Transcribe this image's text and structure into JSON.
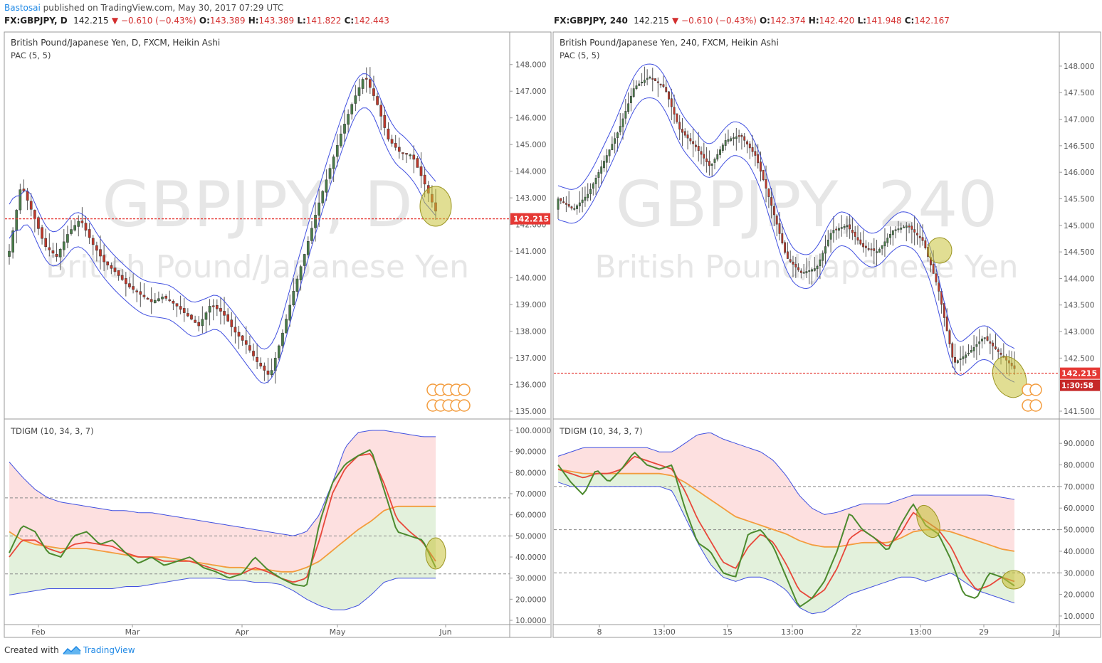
{
  "header": {
    "author": "Bastosai",
    "published": " published on TradingView.com, May 30, 2017 07:29 UTC"
  },
  "panels": [
    {
      "quote": {
        "symbol": "FX:GBPJPY, D",
        "last": "142.215",
        "change": "▼ −0.610 (−0.43%)",
        "o": "143.389",
        "h": "143.389",
        "l": "141.822",
        "c": "142.443"
      },
      "title": "British Pound/Japanese Yen, D, FXCM, Heikin Ashi",
      "indicator": "PAC (5, 5)",
      "watermark_symbol": "GBPJPY, D",
      "watermark_name": "British Pound/Japanese Yen",
      "price_label": "142.215",
      "osc_title": "TDIGM (10, 34, 3, 7)",
      "x_ticks": [
        "Feb",
        "Mar",
        "Apr",
        "May",
        "Jun"
      ]
    },
    {
      "quote": {
        "symbol": "FX:GBPJPY, 240",
        "last": "142.215",
        "change": "▼ −0.610 (−0.43%)",
        "o": "142.374",
        "h": "142.420",
        "l": "141.948",
        "c": "142.167"
      },
      "title": "British Pound/Japanese Yen, 240, FXCM, Heikin Ashi",
      "indicator": "PAC (5, 5)",
      "watermark_symbol": "GBPJPY, 240",
      "watermark_name": "British Pound/Japanese Yen",
      "price_label": "142.215",
      "countdown": "1:30:58",
      "osc_title": "TDIGM (10, 34, 3, 7)",
      "x_ticks": [
        "8",
        "13:00",
        "15",
        "13:00",
        "22",
        "13:00",
        "29",
        "Ju"
      ]
    }
  ],
  "footer": {
    "created": "Created with",
    "brand": "TradingView"
  },
  "colors": {
    "up": "#4a7d4a",
    "down": "#c0392b",
    "pac": "#4150e0",
    "price_line": "#e53935",
    "green_line": "#4c8a2e",
    "red_line": "#e8473a",
    "orange_line": "#f39c3d",
    "pink_fill": "#fde0e0",
    "green_fill": "#e3f1dc",
    "highlight": "#c8c23a"
  },
  "chart_data": [
    {
      "type": "candlestick",
      "title": "British Pound/Japanese Yen, D, FXCM, Heikin Ashi",
      "ylim": [
        135.0,
        148.5
      ],
      "y_ticks": [
        "148.000",
        "147.000",
        "146.000",
        "145.000",
        "144.000",
        "143.000",
        "142.000",
        "141.000",
        "140.000",
        "139.000",
        "138.000",
        "137.000",
        "136.000",
        "135.000"
      ],
      "x_ticks": [
        "Feb",
        "Mar",
        "Apr",
        "May",
        "Jun"
      ],
      "series": [
        {
          "name": "PAC (5, 5)",
          "path": "upper and lower price action channel"
        }
      ],
      "close_trend": [
        141,
        143.5,
        142.4,
        141.2,
        140.8,
        141.7,
        142.2,
        141.3,
        140.6,
        140.2,
        139.7,
        139.4,
        139.1,
        139.3,
        139.0,
        138.6,
        138.2,
        139.0,
        138.7,
        138.0,
        137.5,
        136.8,
        136.3,
        137.8,
        139.5,
        141.0,
        142.6,
        144.0,
        145.4,
        146.6,
        147.6,
        146.6,
        145.2,
        144.7,
        144.6,
        143.6,
        142.5
      ],
      "last_price": 142.215
    },
    {
      "type": "candlestick",
      "title": "British Pound/Japanese Yen, 240, FXCM, Heikin Ashi",
      "ylim": [
        141.5,
        148.2
      ],
      "y_ticks": [
        "148.000",
        "147.500",
        "147.000",
        "146.500",
        "146.000",
        "145.500",
        "145.000",
        "144.500",
        "144.000",
        "143.500",
        "143.000",
        "142.500",
        "141.500"
      ],
      "x_ticks": [
        "8",
        "13:00",
        "15",
        "13:00",
        "22",
        "13:00",
        "29",
        "Ju"
      ],
      "close_trend": [
        145.5,
        145.3,
        145.6,
        146.2,
        146.8,
        147.6,
        147.8,
        147.6,
        146.8,
        146.5,
        146.1,
        146.6,
        146.7,
        146.3,
        145.4,
        144.4,
        144.1,
        144.2,
        144.9,
        145.0,
        144.6,
        144.5,
        144.9,
        145.0,
        144.7,
        143.8,
        142.4,
        142.6,
        142.9,
        142.6,
        142.3
      ],
      "last_price": 142.215
    },
    {
      "type": "line",
      "title": "TDIGM (10, 34, 3, 7)",
      "ylim": [
        10,
        100
      ],
      "y_ticks": [
        "100.0000",
        "90.0000",
        "80.0000",
        "70.0000",
        "60.0000",
        "50.0000",
        "40.0000",
        "30.0000",
        "20.0000",
        "10.0000"
      ],
      "levels": [
        68,
        50,
        32
      ],
      "series": [
        {
          "name": "green",
          "values": [
            42,
            55,
            52,
            42,
            40,
            50,
            52,
            46,
            48,
            42,
            37,
            40,
            36,
            38,
            40,
            35,
            33,
            30,
            32,
            40,
            34,
            30,
            27,
            26,
            56,
            75,
            84,
            88,
            91,
            72,
            52,
            50,
            48,
            35
          ]
        },
        {
          "name": "red",
          "values": [
            40,
            48,
            48,
            44,
            42,
            46,
            47,
            46,
            45,
            42,
            40,
            40,
            38,
            38,
            38,
            36,
            34,
            32,
            32,
            35,
            33,
            30,
            28,
            30,
            48,
            70,
            82,
            88,
            89,
            75,
            58,
            52,
            47,
            38
          ]
        },
        {
          "name": "orange",
          "values": [
            52,
            48,
            46,
            45,
            44,
            44,
            44,
            43,
            42,
            41,
            40,
            40,
            40,
            39,
            38,
            37,
            36,
            35,
            35,
            34,
            34,
            33,
            33,
            35,
            38,
            43,
            48,
            53,
            57,
            62,
            64,
            64,
            64,
            64
          ]
        },
        {
          "name": "upper",
          "values": [
            85,
            78,
            72,
            68,
            66,
            65,
            64,
            63,
            62,
            62,
            61,
            61,
            60,
            59,
            58,
            57,
            56,
            55,
            54,
            53,
            52,
            51,
            50,
            52,
            60,
            75,
            92,
            99,
            100,
            100,
            99,
            98,
            97,
            97
          ]
        },
        {
          "name": "lower",
          "values": [
            22,
            23,
            24,
            25,
            25,
            25,
            25,
            25,
            25,
            26,
            26,
            27,
            28,
            29,
            30,
            30,
            30,
            29,
            29,
            28,
            28,
            27,
            24,
            20,
            17,
            15,
            15,
            17,
            22,
            28,
            30,
            30,
            30,
            30
          ]
        }
      ]
    },
    {
      "type": "line",
      "title": "TDIGM (10, 34, 3, 7)",
      "ylim": [
        8,
        96
      ],
      "y_ticks": [
        "90.0000",
        "80.0000",
        "70.0000",
        "60.0000",
        "50.0000",
        "40.0000",
        "30.0000",
        "20.0000",
        "10.0000"
      ],
      "levels": [
        70,
        50,
        30
      ],
      "series": [
        {
          "name": "green",
          "values": [
            80,
            72,
            66,
            78,
            72,
            78,
            86,
            80,
            78,
            80,
            60,
            44,
            40,
            30,
            28,
            48,
            50,
            42,
            28,
            14,
            18,
            26,
            40,
            58,
            50,
            46,
            40,
            52,
            62,
            52,
            48,
            36,
            20,
            18,
            30,
            28,
            24
          ]
        },
        {
          "name": "red",
          "values": [
            78,
            76,
            74,
            76,
            76,
            78,
            84,
            82,
            80,
            78,
            68,
            55,
            45,
            35,
            32,
            42,
            48,
            44,
            34,
            22,
            18,
            22,
            32,
            46,
            50,
            46,
            42,
            48,
            58,
            54,
            50,
            42,
            30,
            22,
            24,
            28,
            26
          ]
        },
        {
          "name": "orange",
          "values": [
            78,
            77,
            76,
            76,
            76,
            76,
            76,
            76,
            76,
            75,
            72,
            68,
            64,
            60,
            56,
            54,
            52,
            50,
            48,
            45,
            43,
            42,
            42,
            43,
            44,
            44,
            44,
            46,
            49,
            50,
            50,
            49,
            47,
            45,
            43,
            41,
            40
          ]
        },
        {
          "name": "upper",
          "values": [
            84,
            86,
            88,
            88,
            88,
            88,
            88,
            88,
            86,
            86,
            90,
            94,
            95,
            92,
            90,
            88,
            86,
            82,
            75,
            66,
            60,
            57,
            58,
            60,
            62,
            62,
            62,
            64,
            66,
            66,
            66,
            66,
            66,
            66,
            66,
            65,
            64
          ]
        },
        {
          "name": "lower",
          "values": [
            72,
            70,
            70,
            70,
            70,
            70,
            70,
            70,
            70,
            68,
            56,
            44,
            34,
            28,
            26,
            28,
            28,
            26,
            22,
            14,
            11,
            12,
            16,
            20,
            22,
            24,
            26,
            28,
            28,
            26,
            28,
            30,
            26,
            22,
            20,
            18,
            16
          ]
        }
      ]
    }
  ]
}
